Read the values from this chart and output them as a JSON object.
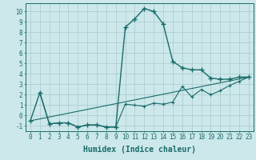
{
  "xlabel": "Humidex (Indice chaleur)",
  "background_color": "#cce8ea",
  "grid_color": "#aac8cc",
  "line_color": "#1a6b6b",
  "xlim": [
    -0.5,
    23.5
  ],
  "ylim": [
    -1.5,
    10.8
  ],
  "xticks": [
    0,
    1,
    2,
    3,
    4,
    5,
    6,
    7,
    8,
    9,
    10,
    11,
    12,
    13,
    14,
    15,
    16,
    17,
    18,
    19,
    20,
    21,
    22,
    23
  ],
  "yticks": [
    -1,
    0,
    1,
    2,
    3,
    4,
    5,
    6,
    7,
    8,
    9,
    10
  ],
  "series1_x": [
    0,
    1,
    2,
    3,
    4,
    5,
    6,
    7,
    8,
    9,
    10,
    11,
    12,
    13,
    14,
    15,
    16,
    17,
    18,
    19,
    20,
    21,
    22,
    23
  ],
  "series1_y": [
    -0.5,
    2.2,
    -0.8,
    -0.7,
    -0.7,
    -1.1,
    -0.9,
    -0.9,
    -1.1,
    -1.1,
    8.5,
    9.3,
    10.3,
    10.0,
    8.8,
    5.2,
    4.6,
    4.4,
    4.4,
    3.6,
    3.5,
    3.5,
    3.7,
    3.7
  ],
  "series2_x": [
    1,
    2,
    3,
    4,
    5,
    6,
    7,
    8,
    9,
    10,
    11,
    12,
    13,
    14,
    15,
    16,
    17,
    18,
    19,
    20,
    21,
    22,
    23
  ],
  "series2_y": [
    2.2,
    -0.8,
    -0.7,
    -0.7,
    -1.1,
    -0.9,
    -0.9,
    -1.1,
    -1.1,
    1.1,
    1.0,
    0.9,
    1.2,
    1.1,
    1.3,
    2.8,
    1.8,
    2.5,
    2.0,
    2.4,
    2.9,
    3.3,
    3.7
  ],
  "series3_x": [
    0,
    23
  ],
  "series3_y": [
    -0.5,
    3.7
  ],
  "font_color": "#1a6b6b",
  "tick_fontsize": 5.5,
  "xlabel_fontsize": 7
}
